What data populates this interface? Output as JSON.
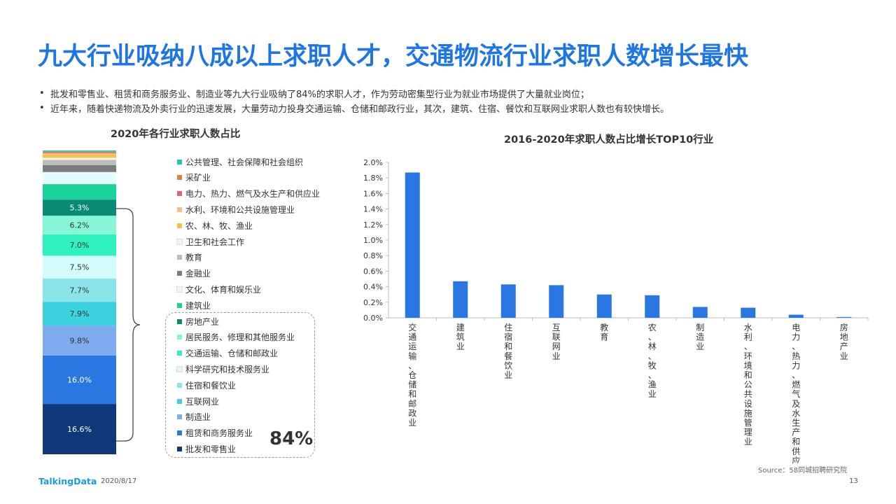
{
  "title": "九大行业吸纳八成以上求职人才，交通物流行业求职人数增长最快",
  "bullets": [
    "批发和零售业、租赁和商务服务业、制造业等九大行业吸纳了84%的求职人才，作为劳动密集型行业为就业市场提供了大量就业岗位；",
    "近年来，随着快递物流及外卖行业的迅速发展，大量劳动力投身交通运输、仓储和邮政行业，其次，建筑、住宿、餐饮和互联网业求职人数也有较快增长。"
  ],
  "bullet_symbol": "•",
  "highlight_label": "84%",
  "source": "Source：58同城招聘研究院",
  "footer": {
    "logo": "TalkingData",
    "date": "2020/8/17",
    "page": "13"
  },
  "chart_data": [
    {
      "type": "bar",
      "stacked": true,
      "title": "2020年各行业求职人数占比",
      "unit": "%",
      "legend_order": [
        "公共管理、社会保障和社会组织",
        "采矿业",
        "电力、热力、燃气及水生产和供应业",
        "水利、环境和公共设施管理业",
        "农、林、牧、渔业",
        "卫生和社会工作",
        "教育",
        "金融业",
        "文化、体育和娱乐业",
        "建筑业",
        "房地产业",
        "居民服务、修理和其他服务业",
        "交通运输、仓储和邮政业",
        "科学研究和技术服务业",
        "住宿和餐饮业",
        "互联网业",
        "制造业",
        "租赁和商务服务业",
        "批发和零售业"
      ],
      "segments_bottom_to_top": [
        {
          "name": "批发和零售业",
          "value": 16.6,
          "label": "16.6%",
          "color": "#0e3878"
        },
        {
          "name": "租赁和商务服务业",
          "value": 16.0,
          "label": "16.0%",
          "color": "#2b77e1"
        },
        {
          "name": "制造业",
          "value": 9.8,
          "label": "9.8%",
          "color": "#7eaaf0"
        },
        {
          "name": "互联网业",
          "value": 7.9,
          "label": "7.9%",
          "color": "#3bd2dd"
        },
        {
          "name": "住宿和餐饮业",
          "value": 7.7,
          "label": "7.7%",
          "color": "#8ae4ea"
        },
        {
          "name": "科学研究和技术服务业",
          "value": 7.5,
          "label": "7.5%",
          "color": "#d3fbfb"
        },
        {
          "name": "交通运输、仓储和邮政业",
          "value": 7.0,
          "label": "7.0%",
          "color": "#2ef2bd"
        },
        {
          "name": "居民服务、修理和其他服务业",
          "value": 6.2,
          "label": "6.2%",
          "color": "#86f6d6"
        },
        {
          "name": "房地产业",
          "value": 5.3,
          "label": "5.3%",
          "color": "#0a8a74"
        },
        {
          "name": "建筑业",
          "value": 5.1,
          "label": "",
          "color": "#18d49a"
        },
        {
          "name": "文化、体育和娱乐业",
          "value": 4.0,
          "label": "",
          "color": "#e6fbfd"
        },
        {
          "name": "金融业",
          "value": 2.3,
          "label": "",
          "color": "#7c7c7c"
        },
        {
          "name": "教育",
          "value": 1.7,
          "label": "",
          "color": "#bcbcbc"
        },
        {
          "name": "卫生和社会工作",
          "value": 0.7,
          "label": "",
          "color": "#f2f2f2"
        },
        {
          "name": "农、林、牧、渔业",
          "value": 1.0,
          "label": "",
          "color": "#f7c23a"
        },
        {
          "name": "水利、环境和公共设施管理业",
          "value": 0.5,
          "label": "",
          "color": "#f5bf94"
        },
        {
          "name": "电力、热力、燃气及水生产和供应业",
          "value": 0.3,
          "label": "",
          "color": "#e36470"
        },
        {
          "name": "采矿业",
          "value": 0.2,
          "label": "",
          "color": "#e0803a"
        },
        {
          "name": "公共管理、社会保障和社会组织",
          "value": 0.4,
          "label": "",
          "color": "#1fc9a1"
        }
      ]
    },
    {
      "type": "bar",
      "title": "2016-2020年求职人数占比增长TOP10行业",
      "categories": [
        "交通运输、仓储和邮政业",
        "建筑业",
        "住宿和餐饮业",
        "互联网业",
        "教育",
        "农、林、牧、渔业",
        "制造业",
        "水利、环境和公共设施管理业",
        "电力、热力、燃气及水生产和供应业",
        "房地产业"
      ],
      "values": [
        1.87,
        0.47,
        0.43,
        0.42,
        0.3,
        0.29,
        0.14,
        0.13,
        0.04,
        0.01
      ],
      "unit": "%",
      "ylim": [
        0,
        2.0
      ],
      "yticks": [
        "0.0%",
        "0.2%",
        "0.4%",
        "0.6%",
        "0.8%",
        "1.0%",
        "1.2%",
        "1.4%",
        "1.6%",
        "1.8%",
        "2.0%"
      ],
      "bar_color": "#2b77e1",
      "grid": false
    }
  ]
}
